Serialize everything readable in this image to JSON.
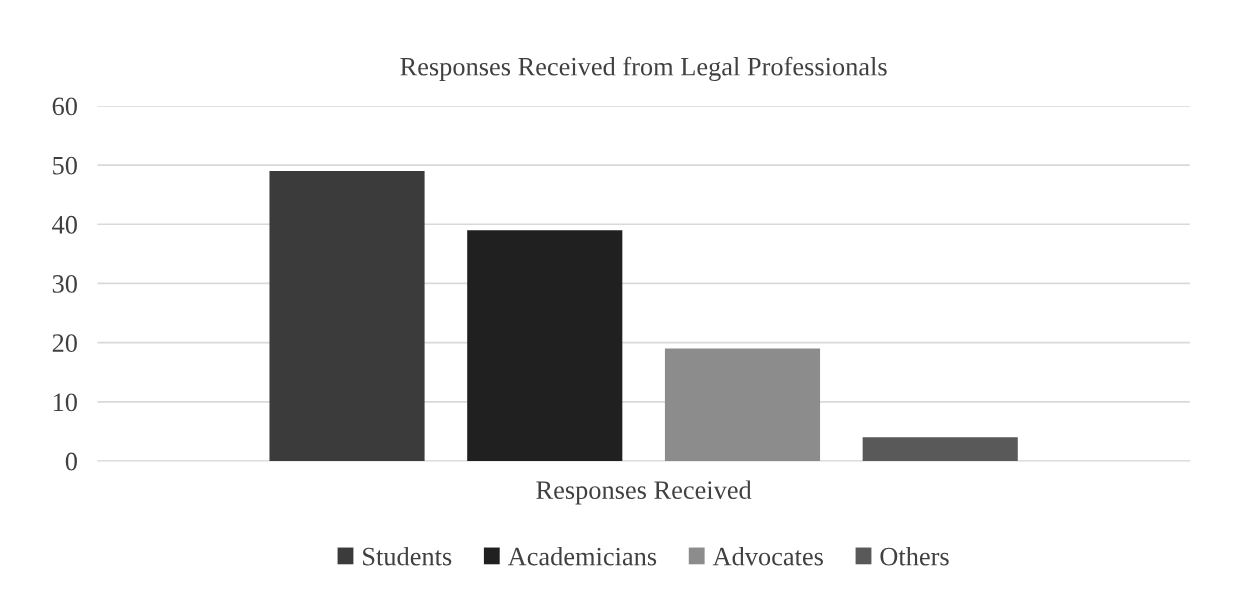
{
  "chart_data": {
    "type": "bar",
    "title": "Responses Received from Legal Professionals",
    "categories": [
      "Responses Received"
    ],
    "series": [
      {
        "name": "Students",
        "color": "#3b3b3b",
        "values": [
          49
        ]
      },
      {
        "name": "Academicians",
        "color": "#202020",
        "values": [
          39
        ]
      },
      {
        "name": "Advocates",
        "color": "#8c8c8c",
        "values": [
          19
        ]
      },
      {
        "name": "Others",
        "color": "#595959",
        "values": [
          4
        ]
      }
    ],
    "ylim": [
      0,
      60
    ],
    "yticks": [
      0,
      10,
      20,
      30,
      40,
      50,
      60
    ],
    "grid": "y",
    "legend": "bottom"
  }
}
